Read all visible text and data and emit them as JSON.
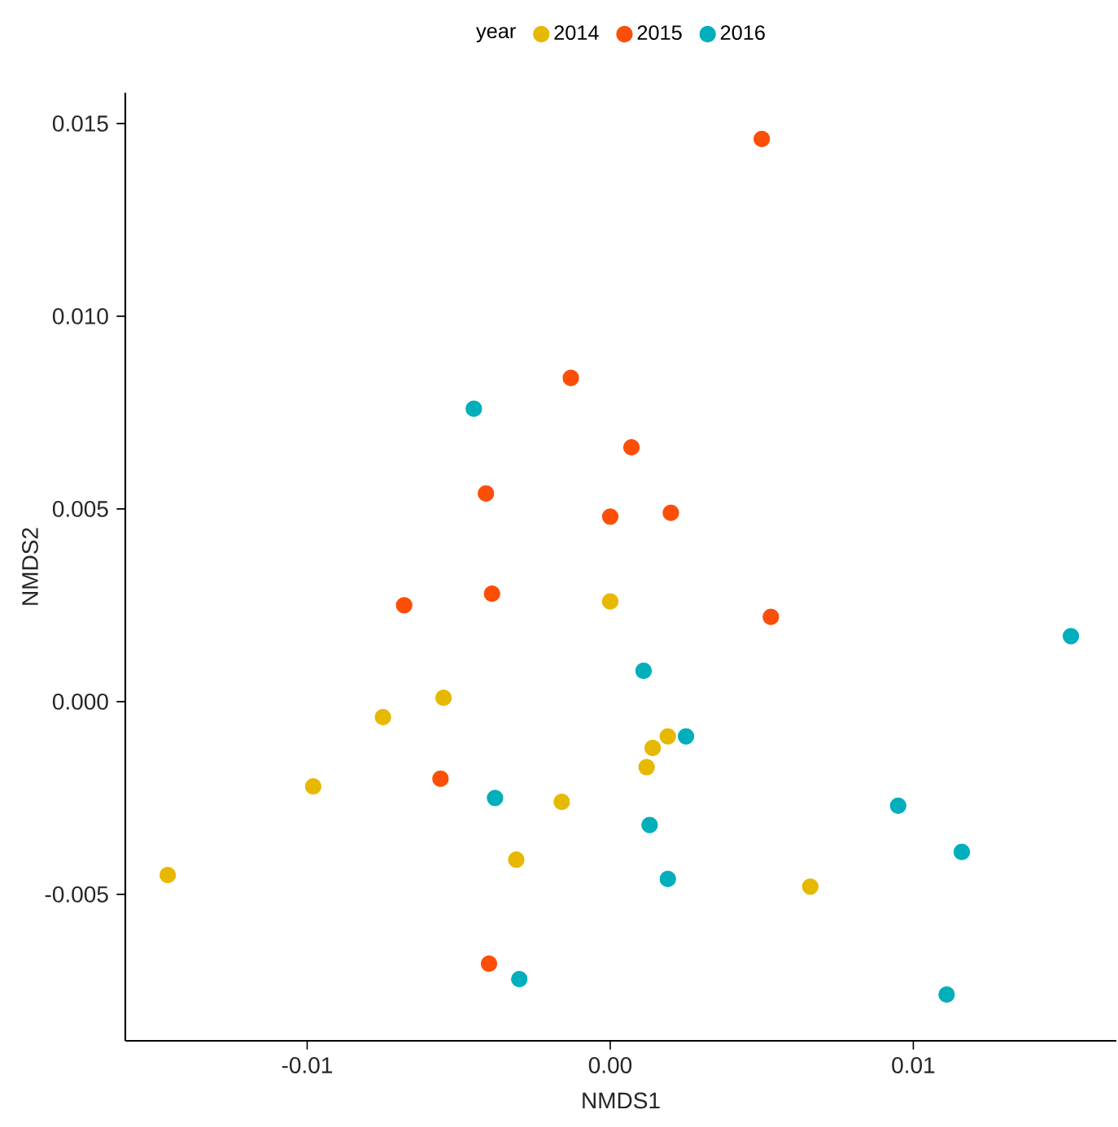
{
  "chart_data": {
    "type": "scatter",
    "xlabel": "NMDS1",
    "ylabel": "NMDS2",
    "legend_title": "year",
    "legend": "top",
    "marker": "circle",
    "xlim": [
      -0.016,
      0.0167
    ],
    "ylim": [
      -0.0088,
      0.0158
    ],
    "xticks": [
      {
        "value": -0.01,
        "label": "-0.01"
      },
      {
        "value": 0,
        "label": "0.00"
      },
      {
        "value": 0.01,
        "label": "0.01"
      }
    ],
    "yticks": [
      {
        "value": -0.005,
        "label": "-0.005"
      },
      {
        "value": 0,
        "label": "0.000"
      },
      {
        "value": 0.005,
        "label": "0.005"
      },
      {
        "value": 0.01,
        "label": "0.010"
      },
      {
        "value": 0.015,
        "label": "0.015"
      }
    ],
    "series": [
      {
        "name": "2014",
        "color": "#e7b800",
        "x": [
          0.0,
          -0.0055,
          -0.0075,
          -0.0098,
          -0.0146,
          0.0014,
          0.0019,
          0.0012,
          -0.0016,
          -0.0031,
          0.0066
        ],
        "values": [
          0.0026,
          0.0001,
          -0.0004,
          -0.0022,
          -0.0045,
          -0.0012,
          -0.0009,
          -0.0017,
          -0.0026,
          -0.0041,
          -0.0048
        ]
      },
      {
        "name": "2015",
        "color": "#fc4e07",
        "x": [
          0.005,
          -0.0013,
          0.0007,
          -0.0041,
          0.0,
          0.002,
          -0.0068,
          -0.0039,
          0.0053,
          -0.0056,
          -0.004
        ],
        "values": [
          0.0146,
          0.0084,
          0.0066,
          0.0054,
          0.0048,
          0.0049,
          0.0025,
          0.0028,
          0.0022,
          -0.002,
          -0.0068
        ]
      },
      {
        "name": "2016",
        "color": "#00afbb",
        "x": [
          -0.0045,
          0.0152,
          0.0011,
          0.0025,
          -0.0038,
          0.0013,
          0.0019,
          0.0095,
          0.0116,
          -0.003,
          0.0111
        ],
        "values": [
          0.0076,
          0.0017,
          0.0008,
          -0.0009,
          -0.0025,
          -0.0032,
          -0.0046,
          -0.0027,
          -0.0039,
          -0.0072,
          -0.0076
        ]
      }
    ]
  }
}
